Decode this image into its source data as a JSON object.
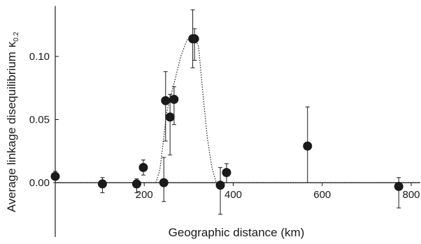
{
  "chart_data": {
    "type": "scatter",
    "title": "",
    "xlabel": "Geographic distance (km)",
    "ylabel": "Average linkage disequilibrium",
    "ylabel_symbol": "κ",
    "ylabel_subscript": "0.2",
    "xlim": [
      0,
      820
    ],
    "ylim": [
      -0.043,
      0.14
    ],
    "x_ticks": [
      {
        "value": 200,
        "label": "200"
      },
      {
        "value": 400,
        "label": "400"
      },
      {
        "value": 600,
        "label": "600"
      },
      {
        "value": 800,
        "label": "800"
      }
    ],
    "y_ticks": [
      {
        "value": 0.0,
        "label": "0.00"
      },
      {
        "value": 0.05,
        "label": "0.05"
      },
      {
        "value": 0.1,
        "label": "0.10"
      }
    ],
    "grid": false,
    "legend": "none",
    "marker_color": "#1a1a1a",
    "points": [
      {
        "x": 0,
        "y": 0.005,
        "err_low": 0.0,
        "err_high": 0.009
      },
      {
        "x": 106,
        "y": -0.001,
        "err_low": -0.008,
        "err_high": 0.004
      },
      {
        "x": 183,
        "y": -0.001,
        "err_low": -0.008,
        "err_high": 0.003
      },
      {
        "x": 198,
        "y": 0.012,
        "err_low": 0.006,
        "err_high": 0.018
      },
      {
        "x": 244,
        "y": 0.0,
        "err_low": -0.015,
        "err_high": 0.02
      },
      {
        "x": 248,
        "y": 0.065,
        "err_low": 0.033,
        "err_high": 0.088
      },
      {
        "x": 258,
        "y": 0.052,
        "err_low": 0.022,
        "err_high": 0.07
      },
      {
        "x": 267,
        "y": 0.066,
        "err_low": 0.046,
        "err_high": 0.076
      },
      {
        "x": 309,
        "y": 0.114,
        "err_low": 0.091,
        "err_high": 0.137
      },
      {
        "x": 313,
        "y": 0.114,
        "err_low": 0.097,
        "err_high": 0.122
      },
      {
        "x": 371,
        "y": -0.002,
        "err_low": -0.025,
        "err_high": 0.012
      },
      {
        "x": 385,
        "y": 0.008,
        "err_low": 0.0,
        "err_high": 0.015
      },
      {
        "x": 567,
        "y": 0.029,
        "err_low": 0.0,
        "err_high": 0.06
      },
      {
        "x": 772,
        "y": -0.003,
        "err_low": -0.02,
        "err_high": 0.004
      }
    ],
    "baseline": {
      "y": 0.0,
      "style": "dotted"
    },
    "peak_curve": {
      "style": "dotted",
      "points": [
        [
          226,
          0.0
        ],
        [
          235,
          0.01
        ],
        [
          242,
          0.03
        ],
        [
          250,
          0.055
        ],
        [
          259,
          0.068
        ],
        [
          268,
          0.08
        ],
        [
          282,
          0.1
        ],
        [
          296,
          0.113
        ],
        [
          310,
          0.117
        ],
        [
          322,
          0.108
        ],
        [
          332,
          0.07
        ],
        [
          342,
          0.035
        ],
        [
          352,
          0.012
        ],
        [
          362,
          0.0
        ]
      ]
    }
  }
}
